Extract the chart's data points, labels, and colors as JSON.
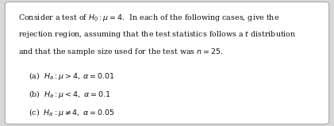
{
  "bg_color": "#d8d8d8",
  "box_color": "#ffffff",
  "border_color": "#aaaaaa",
  "text_color": "#111111",
  "title_line1": "Consider a test of $H_0 : \\mu = 4$.  In each of the following cases, give the",
  "title_line2": "rejection region, assuming that the test statistics follows a $t$ distribution",
  "title_line3": "and that the sample size used for the test was $n = 25$.",
  "item_a": "(a)  $H_a : \\mu > 4, \\; \\alpha = 0.01$",
  "item_b": "(b)  $H_a : \\mu < 4, \\; \\alpha = 0.1$",
  "item_c": "(c)  $H_a : \\mu \\neq 4, \\; \\alpha = 0.05$",
  "figwidth": 4.21,
  "figheight": 1.59,
  "dpi": 100,
  "font_size": 6.8
}
